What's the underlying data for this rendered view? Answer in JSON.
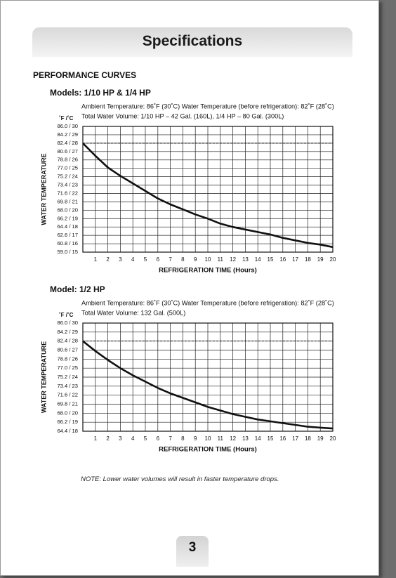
{
  "header": {
    "title": "Specifications"
  },
  "section": {
    "heading": "PERFORMANCE CURVES"
  },
  "chart_data": [
    {
      "type": "line",
      "title": "Models: 1/10 HP & 1/4 HP",
      "subtitle": [
        "Ambient Temperature: 86˚F (30˚C)   Water Temperature (before refrigeration): 82˚F (28˚C)",
        "Total Water Volume: 1/10 HP – 42 Gal. (160L), 1/4 HP – 80 Gal. (300L)"
      ],
      "y_unit_label": "˚F /˚C",
      "y_label": "WATER TEMPERATURE",
      "x_label": "REFRIGERATION TIME (Hours)",
      "x": [
        0,
        1,
        2,
        3,
        4,
        5,
        6,
        7,
        8,
        9,
        10,
        11,
        12,
        13,
        14,
        15,
        16,
        17,
        18,
        19,
        20
      ],
      "values": [
        28,
        26.5,
        25.1,
        24.1,
        23.2,
        22.3,
        21.4,
        20.7,
        20.1,
        19.5,
        19.0,
        18.4,
        18.0,
        17.7,
        17.4,
        17.1,
        16.7,
        16.4,
        16.1,
        15.9,
        15.6
      ],
      "color": "#111111",
      "ref_line": 28,
      "grid": true,
      "xlim": [
        0,
        20
      ],
      "xticks": [
        1,
        2,
        3,
        4,
        5,
        6,
        7,
        8,
        9,
        10,
        11,
        12,
        13,
        14,
        15,
        16,
        17,
        18,
        19,
        20
      ],
      "ylim": [
        15,
        30
      ],
      "yticks": [
        {
          "value": 30,
          "label": "86.0 / 30"
        },
        {
          "value": 29,
          "label": "84.2 / 29"
        },
        {
          "value": 28,
          "label": "82.4 / 28"
        },
        {
          "value": 27,
          "label": "80.6 / 27"
        },
        {
          "value": 26,
          "label": "78.8 / 26"
        },
        {
          "value": 25,
          "label": "77.0 / 25"
        },
        {
          "value": 24,
          "label": "75.2 / 24"
        },
        {
          "value": 23,
          "label": "73.4 / 23"
        },
        {
          "value": 22,
          "label": "71.6 / 22"
        },
        {
          "value": 21,
          "label": "69.8 / 21"
        },
        {
          "value": 20,
          "label": "68.0 / 20"
        },
        {
          "value": 19,
          "label": "66.2 / 19"
        },
        {
          "value": 18,
          "label": "64.4 / 18"
        },
        {
          "value": 17,
          "label": "62.6 / 17"
        },
        {
          "value": 16,
          "label": "60.8 / 16"
        },
        {
          "value": 15,
          "label": "59.0 / 15"
        }
      ]
    },
    {
      "type": "line",
      "title": "Model: 1/2 HP",
      "subtitle": [
        "Ambient Temperature: 86˚F (30˚C)   Water Temperature (before refrigeration): 82˚F (28˚C)",
        "Total Water Volume: 132 Gal. (500L)"
      ],
      "y_unit_label": "˚F /˚C",
      "y_label": "WATER TEMPERATURE",
      "x_label": "REFRIGERATION TIME (Hours)",
      "x": [
        0,
        1,
        2,
        3,
        4,
        5,
        6,
        7,
        8,
        9,
        10,
        11,
        12,
        13,
        14,
        15,
        16,
        17,
        18,
        19,
        20
      ],
      "values": [
        28,
        26.9,
        25.9,
        25.0,
        24.2,
        23.5,
        22.8,
        22.2,
        21.7,
        21.2,
        20.7,
        20.3,
        19.9,
        19.6,
        19.3,
        19.1,
        18.9,
        18.7,
        18.5,
        18.4,
        18.3
      ],
      "color": "#111111",
      "ref_line": 28,
      "grid": true,
      "xlim": [
        0,
        20
      ],
      "xticks": [
        1,
        2,
        3,
        4,
        5,
        6,
        7,
        8,
        9,
        10,
        11,
        12,
        13,
        14,
        15,
        16,
        17,
        18,
        19,
        20
      ],
      "ylim": [
        18,
        30
      ],
      "yticks": [
        {
          "value": 30,
          "label": "86.0 / 30"
        },
        {
          "value": 29,
          "label": "84.2 / 29"
        },
        {
          "value": 28,
          "label": "82.4 / 28"
        },
        {
          "value": 27,
          "label": "80.6 / 27"
        },
        {
          "value": 26,
          "label": "78.8 / 26"
        },
        {
          "value": 25,
          "label": "77.0 / 25"
        },
        {
          "value": 24,
          "label": "75.2 / 24"
        },
        {
          "value": 23,
          "label": "73.4 / 23"
        },
        {
          "value": 22,
          "label": "71.6 / 22"
        },
        {
          "value": 21,
          "label": "69.8 / 21"
        },
        {
          "value": 20,
          "label": "68.0 / 20"
        },
        {
          "value": 19,
          "label": "66.2 / 19"
        },
        {
          "value": 18,
          "label": "64.4 / 18"
        }
      ]
    }
  ],
  "note": "NOTE: Lower water volumes will result in faster temperature drops.",
  "page_number": "3"
}
